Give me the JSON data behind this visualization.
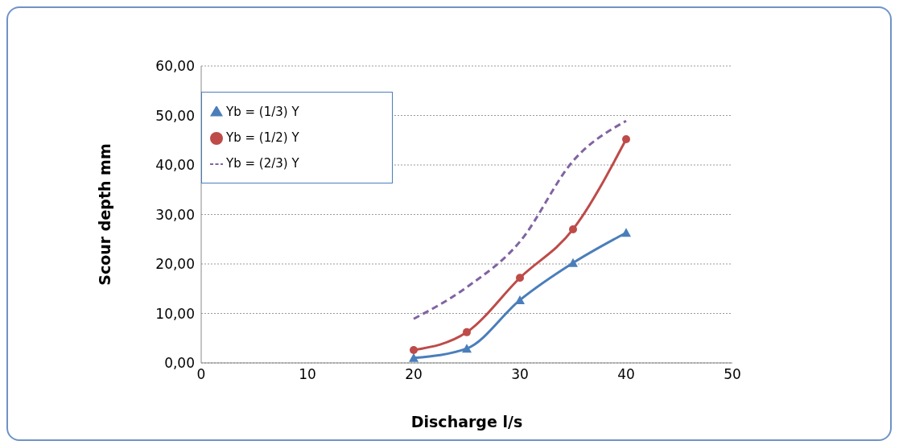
{
  "chart_data": {
    "type": "line",
    "xlabel": "Discharge l/s",
    "ylabel": "Scour depth  mm",
    "x": [
      20,
      25,
      30,
      35,
      40
    ],
    "series": [
      {
        "name": "Yb = (1/3) Y",
        "color": "#4a7ebb",
        "values": [
          1.0,
          2.9,
          12.7,
          20.2,
          26.3
        ],
        "marker": "triangle",
        "line_style": "solid"
      },
      {
        "name": "Yb = (1/2) Y",
        "color": "#be4b48",
        "values": [
          2.6,
          6.2,
          17.2,
          27.0,
          45.2
        ],
        "marker": "circle",
        "line_style": "solid"
      },
      {
        "name": "Yb = (2/3) Y",
        "color": "#8064a2",
        "values": [
          8.9,
          15.3,
          24.5,
          40.8,
          48.9
        ],
        "marker": "none",
        "line_style": "dashed"
      }
    ],
    "xlim": [
      0,
      50
    ],
    "xticks": [
      0,
      10,
      20,
      30,
      40,
      50
    ],
    "ylim": [
      0,
      60
    ],
    "yticks": [
      {
        "value": 0,
        "label": "0,00"
      },
      {
        "value": 10,
        "label": "10,00"
      },
      {
        "value": 20,
        "label": "20,00"
      },
      {
        "value": 30,
        "label": "30,00"
      },
      {
        "value": 40,
        "label": "40,00"
      },
      {
        "value": 50,
        "label": "50,00"
      },
      {
        "value": 60,
        "label": "60,00"
      }
    ],
    "grid": "y",
    "legend": "top left"
  }
}
